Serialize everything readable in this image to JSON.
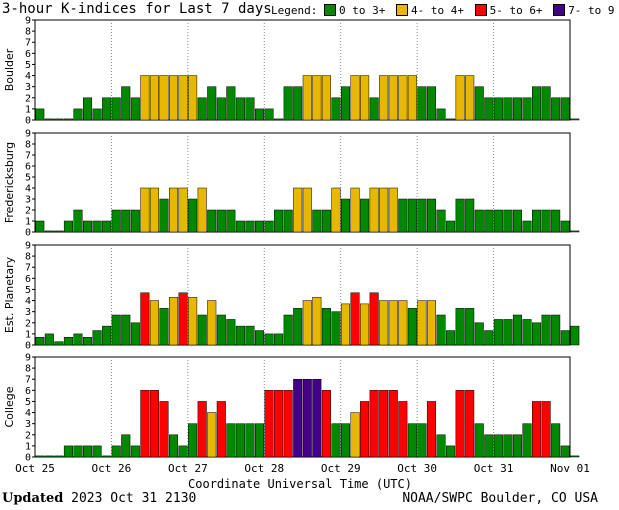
{
  "header": {
    "title": "3-hour K-indices for Last 7 days",
    "legend_label": "Legend:"
  },
  "legend": [
    {
      "label": "0 to 3+",
      "color": "#008800"
    },
    {
      "label": "4- to 4+",
      "color": "#e8b800"
    },
    {
      "label": "5- to 6+",
      "color": "#ff0000"
    },
    {
      "label": "7- to 9",
      "color": "#440088"
    }
  ],
  "footer": {
    "updated_label": "Updated",
    "updated_value": "2023 Oct 31 2130",
    "credit": "NOAA/SWPC Boulder, CO USA"
  },
  "chart_data": {
    "type": "bar",
    "xlabel": "Coordinate Universal Time (UTC)",
    "ylim": [
      0,
      9
    ],
    "yticks": [
      "0",
      "1",
      "2",
      "3",
      "4",
      "5",
      "6",
      "7",
      "8",
      "9"
    ],
    "x_tick_labels": [
      "Oct 25",
      "Oct 26",
      "Oct 27",
      "Oct 28",
      "Oct 29",
      "Oct 30",
      "Oct 31",
      "Nov 01"
    ],
    "bins_per_day": 8,
    "color_thresholds": {
      "green_max": 3.34,
      "yellow_max": 4.34,
      "red_max": 6.34
    },
    "series": [
      {
        "name": "Boulder",
        "values": [
          1,
          0.1,
          0.1,
          0.1,
          1,
          2,
          1,
          2,
          2,
          3,
          2,
          4,
          4,
          4,
          4,
          4,
          4,
          2,
          3,
          2,
          3,
          2,
          2,
          1,
          1,
          0.1,
          3,
          3,
          4,
          4,
          4,
          2,
          3,
          4,
          4,
          2,
          4,
          4,
          4,
          4,
          3,
          3,
          1,
          0.1,
          4,
          4,
          3,
          2,
          2,
          2,
          2,
          2,
          3,
          3,
          2,
          2,
          0.1
        ]
      },
      {
        "name": "Fredericksburg",
        "values": [
          1,
          0.1,
          0.1,
          1,
          2,
          1,
          1,
          1,
          2,
          2,
          2,
          4,
          4,
          3,
          4,
          4,
          3,
          4,
          2,
          2,
          2,
          1,
          1,
          1,
          1,
          2,
          2,
          4,
          4,
          2,
          2,
          4,
          3,
          4,
          3,
          4,
          4,
          4,
          3,
          3,
          3,
          3,
          2,
          1,
          3,
          3,
          2,
          2,
          2,
          2,
          2,
          1,
          2,
          2,
          2,
          1,
          0.1
        ]
      },
      {
        "name": "Est. Planetary",
        "values": [
          0.7,
          1,
          0.3,
          0.7,
          1,
          0.7,
          1.3,
          1.7,
          2.7,
          2.7,
          2,
          4.7,
          4,
          3.3,
          4.3,
          4.7,
          4.3,
          2.7,
          4,
          2.7,
          2.3,
          1.7,
          1.7,
          1.3,
          1,
          1,
          2.7,
          3.3,
          4,
          4.3,
          3.3,
          3,
          3.7,
          4.7,
          3.7,
          4.7,
          4,
          4,
          4,
          3.3,
          4,
          4,
          2.7,
          1.3,
          3.3,
          3.3,
          2,
          1.3,
          2.3,
          2.3,
          2.7,
          2.3,
          2,
          2.7,
          2.7,
          1.3,
          1.7
        ]
      },
      {
        "name": "College",
        "values": [
          0.1,
          0.1,
          0.1,
          1,
          1,
          1,
          1,
          0.1,
          1,
          2,
          1,
          6,
          6,
          5,
          2,
          1,
          3,
          5,
          4,
          5,
          3,
          3,
          3,
          3,
          6,
          6,
          6,
          7,
          7,
          7,
          6,
          3,
          3,
          4,
          5,
          6,
          6,
          6,
          5,
          3,
          3,
          5,
          2,
          1,
          6,
          6,
          3,
          2,
          2,
          2,
          2,
          3,
          5,
          5,
          3,
          1,
          0.1
        ]
      }
    ]
  }
}
